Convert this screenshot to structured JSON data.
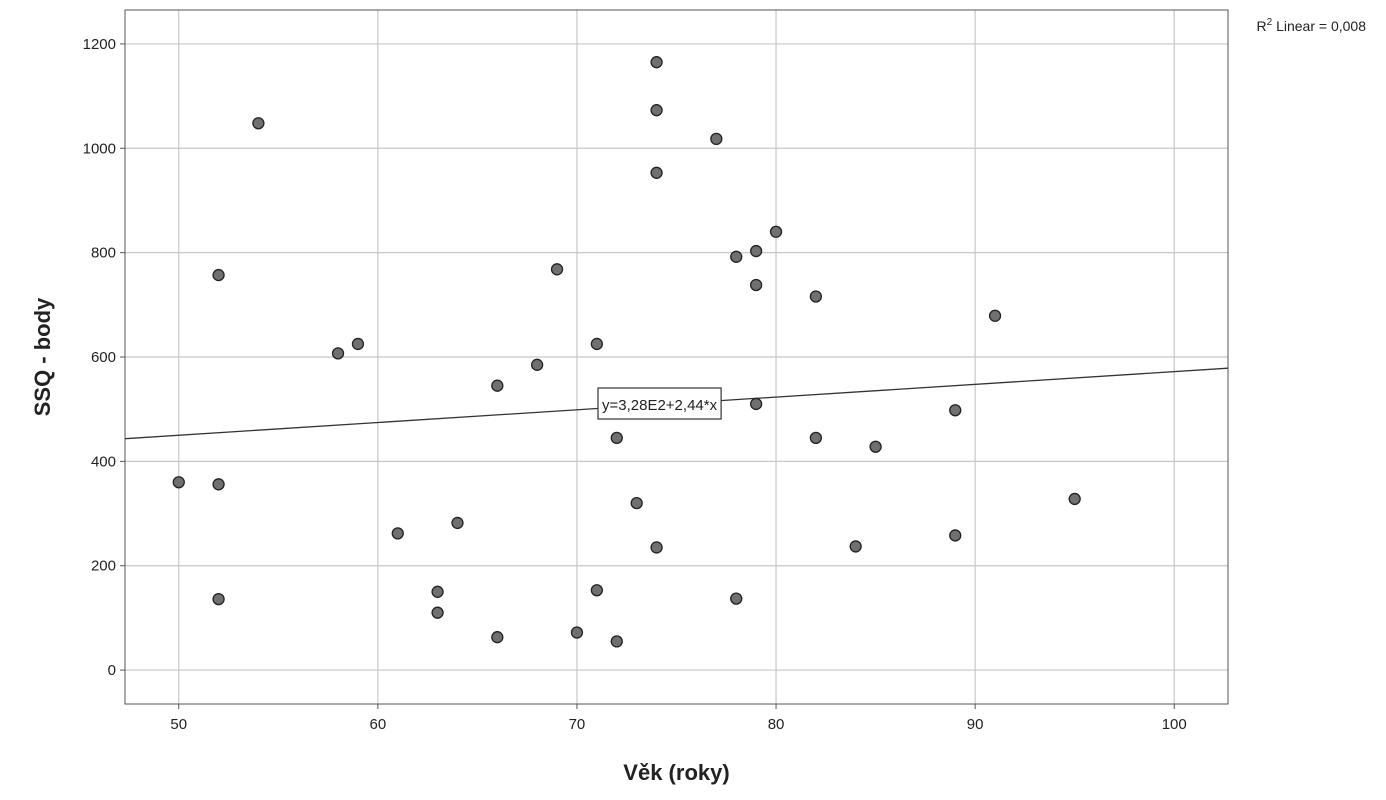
{
  "chart_data": {
    "type": "scatter",
    "xlabel": "Věk (roky)",
    "ylabel": "SSQ - body",
    "xlim": [
      47.3,
      102.7
    ],
    "ylim": [
      -65,
      1265
    ],
    "xticks": [
      50,
      60,
      70,
      80,
      90,
      100
    ],
    "yticks": [
      0,
      200,
      400,
      600,
      800,
      1000,
      1200
    ],
    "grid": true,
    "fit_line": {
      "intercept": 328,
      "slope": 2.44,
      "label": "y=3,28E2+2,44*x"
    },
    "r2_label": {
      "prefix": "R",
      "sup": "2",
      "text": " Linear = 0,008"
    },
    "points": [
      {
        "x": 50,
        "y": 360
      },
      {
        "x": 52,
        "y": 757
      },
      {
        "x": 52,
        "y": 356
      },
      {
        "x": 52,
        "y": 136
      },
      {
        "x": 54,
        "y": 1048
      },
      {
        "x": 58,
        "y": 607
      },
      {
        "x": 59,
        "y": 625
      },
      {
        "x": 61,
        "y": 262
      },
      {
        "x": 63,
        "y": 150
      },
      {
        "x": 63,
        "y": 110
      },
      {
        "x": 64,
        "y": 282
      },
      {
        "x": 66,
        "y": 545
      },
      {
        "x": 66,
        "y": 63
      },
      {
        "x": 68,
        "y": 585
      },
      {
        "x": 69,
        "y": 768
      },
      {
        "x": 70,
        "y": 72
      },
      {
        "x": 71,
        "y": 625
      },
      {
        "x": 71,
        "y": 153
      },
      {
        "x": 72,
        "y": 445
      },
      {
        "x": 72,
        "y": 55
      },
      {
        "x": 73,
        "y": 320
      },
      {
        "x": 74,
        "y": 1165
      },
      {
        "x": 74,
        "y": 1073
      },
      {
        "x": 74,
        "y": 953
      },
      {
        "x": 74,
        "y": 235
      },
      {
        "x": 77,
        "y": 1018
      },
      {
        "x": 78,
        "y": 792
      },
      {
        "x": 78,
        "y": 137
      },
      {
        "x": 79,
        "y": 803
      },
      {
        "x": 79,
        "y": 738
      },
      {
        "x": 79,
        "y": 510
      },
      {
        "x": 80,
        "y": 840
      },
      {
        "x": 82,
        "y": 716
      },
      {
        "x": 82,
        "y": 445
      },
      {
        "x": 84,
        "y": 237
      },
      {
        "x": 85,
        "y": 428
      },
      {
        "x": 89,
        "y": 498
      },
      {
        "x": 89,
        "y": 258
      },
      {
        "x": 91,
        "y": 679
      },
      {
        "x": 95,
        "y": 328
      }
    ]
  }
}
